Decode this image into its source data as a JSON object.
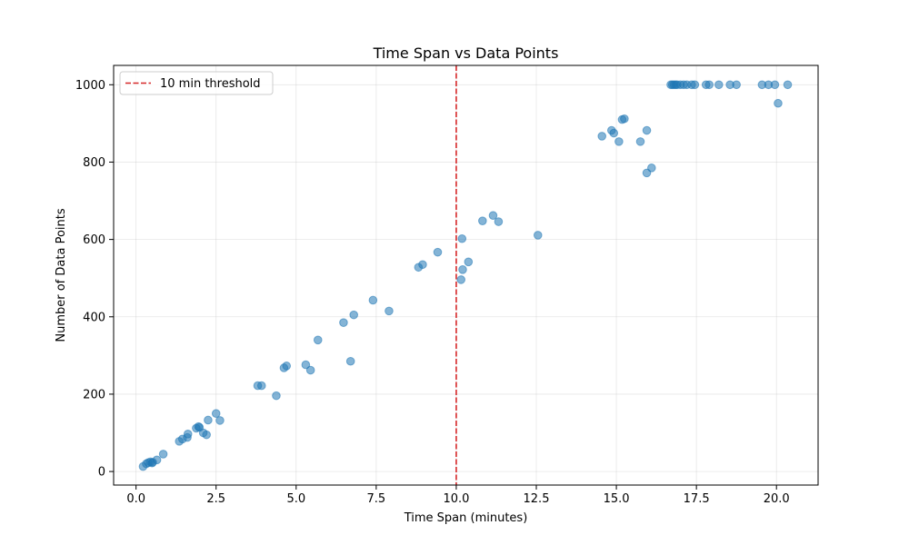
{
  "chart_data": {
    "type": "scatter",
    "title": "Time Span vs Data Points",
    "xlabel": "Time Span (minutes)",
    "ylabel": "Number of Data Points",
    "xlim": [
      -0.7,
      21.3
    ],
    "ylim": [
      -35,
      1050
    ],
    "xticks": [
      0.0,
      2.5,
      5.0,
      7.5,
      10.0,
      12.5,
      15.0,
      17.5,
      20.0
    ],
    "xtick_labels": [
      "0.0",
      "2.5",
      "5.0",
      "7.5",
      "10.0",
      "12.5",
      "15.0",
      "17.5",
      "20.0"
    ],
    "yticks": [
      0,
      200,
      400,
      600,
      800,
      1000
    ],
    "ytick_labels": [
      "0",
      "200",
      "400",
      "600",
      "800",
      "1000"
    ],
    "grid": true,
    "legend": {
      "position": "top-left",
      "entries": [
        "10 min threshold"
      ]
    },
    "point_color": "#1f77b4",
    "threshold": {
      "x": 10,
      "color": "#d62728",
      "label": "10 min threshold"
    },
    "points": [
      [
        0.22,
        13
      ],
      [
        0.32,
        20
      ],
      [
        0.38,
        23
      ],
      [
        0.45,
        25
      ],
      [
        0.5,
        22
      ],
      [
        0.52,
        24
      ],
      [
        0.65,
        30
      ],
      [
        0.85,
        45
      ],
      [
        1.35,
        78
      ],
      [
        1.45,
        84
      ],
      [
        1.6,
        88
      ],
      [
        1.62,
        97
      ],
      [
        1.88,
        112
      ],
      [
        1.95,
        116
      ],
      [
        1.98,
        114
      ],
      [
        2.1,
        100
      ],
      [
        2.2,
        95
      ],
      [
        2.25,
        133
      ],
      [
        2.5,
        150
      ],
      [
        2.62,
        132
      ],
      [
        3.8,
        222
      ],
      [
        3.92,
        222
      ],
      [
        4.38,
        196
      ],
      [
        4.62,
        268
      ],
      [
        4.7,
        273
      ],
      [
        5.3,
        276
      ],
      [
        5.45,
        262
      ],
      [
        5.68,
        340
      ],
      [
        6.48,
        385
      ],
      [
        6.7,
        285
      ],
      [
        6.8,
        405
      ],
      [
        7.4,
        443
      ],
      [
        7.9,
        415
      ],
      [
        8.82,
        528
      ],
      [
        8.95,
        535
      ],
      [
        9.42,
        567
      ],
      [
        10.15,
        496
      ],
      [
        10.18,
        602
      ],
      [
        10.2,
        522
      ],
      [
        10.38,
        542
      ],
      [
        10.82,
        648
      ],
      [
        11.15,
        662
      ],
      [
        11.32,
        646
      ],
      [
        12.55,
        611
      ],
      [
        14.55,
        867
      ],
      [
        14.85,
        882
      ],
      [
        14.92,
        875
      ],
      [
        15.08,
        853
      ],
      [
        15.18,
        910
      ],
      [
        15.25,
        912
      ],
      [
        15.75,
        853
      ],
      [
        15.95,
        882
      ],
      [
        15.95,
        772
      ],
      [
        16.1,
        785
      ],
      [
        16.7,
        1000
      ],
      [
        16.75,
        1000
      ],
      [
        16.8,
        1000
      ],
      [
        16.85,
        1000
      ],
      [
        16.9,
        1000
      ],
      [
        17.0,
        1000
      ],
      [
        17.1,
        1000
      ],
      [
        17.2,
        1000
      ],
      [
        17.35,
        1000
      ],
      [
        17.45,
        1000
      ],
      [
        17.8,
        1000
      ],
      [
        17.9,
        1000
      ],
      [
        18.2,
        1000
      ],
      [
        18.55,
        1000
      ],
      [
        18.75,
        1000
      ],
      [
        19.55,
        1000
      ],
      [
        19.75,
        1000
      ],
      [
        19.95,
        1000
      ],
      [
        20.05,
        952
      ],
      [
        20.35,
        1000
      ]
    ]
  }
}
